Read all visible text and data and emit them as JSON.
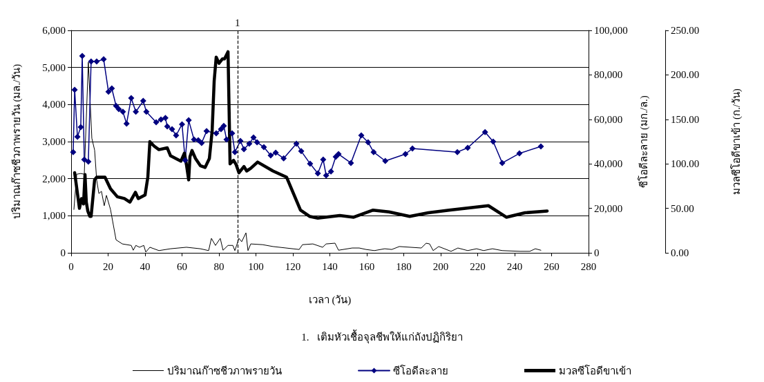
{
  "chart_data": {
    "type": "line",
    "xlabel": "เวลา (วัน)",
    "ylabel": "ปริมาณก๊าซชีวภาพรายวัน (มล./วัน)",
    "y2label": "ซีโอดีละลาย (มก./ล.)",
    "y3label": "มวลซีโอดีขาเข้า (ก./วัน)",
    "xlim": [
      0,
      280
    ],
    "xticks": [
      0,
      20,
      40,
      60,
      80,
      100,
      120,
      140,
      160,
      180,
      200,
      220,
      240,
      260,
      280
    ],
    "ylim": [
      0,
      6000
    ],
    "yticks": [
      {
        "value": 0,
        "label": "0"
      },
      {
        "value": 1000,
        "label": "1,000"
      },
      {
        "value": 2000,
        "label": "2,000"
      },
      {
        "value": 3000,
        "label": "3,000"
      },
      {
        "value": 4000,
        "label": "4,000"
      },
      {
        "value": 5000,
        "label": "5,000"
      },
      {
        "value": 6000,
        "label": "6,000"
      }
    ],
    "y2lim": [
      0,
      100000
    ],
    "y2ticks": [
      {
        "value": 0,
        "label": "0"
      },
      {
        "value": 20000,
        "label": "20,000"
      },
      {
        "value": 40000,
        "label": "40,000"
      },
      {
        "value": 60000,
        "label": "60,000"
      },
      {
        "value": 80000,
        "label": "80,000"
      },
      {
        "value": 100000,
        "label": "100,000"
      }
    ],
    "y3lim": [
      0,
      250
    ],
    "y3ticks": [
      {
        "value": 0,
        "label": "0.00"
      },
      {
        "value": 50,
        "label": "50.00"
      },
      {
        "value": 100,
        "label": "100.00"
      },
      {
        "value": 150,
        "label": "150.00"
      },
      {
        "value": 200,
        "label": "200.00"
      },
      {
        "value": 250,
        "label": "250.00"
      }
    ],
    "grid": "y",
    "legend": "bottom",
    "series": [
      {
        "name": "ปริมาณก๊าซชีวภาพรายวัน",
        "color": "#000000",
        "axis": "y",
        "marker": "none",
        "x": [
          1.5,
          3,
          5.2,
          7.1,
          9.3,
          11.2,
          12.7,
          13.8,
          15,
          16.4,
          17.9,
          19.1,
          21.3,
          24.3,
          27.7,
          32.5,
          33.6,
          35,
          37,
          39.3,
          40.4,
          42.6,
          47.5,
          53.8,
          62.4,
          69.9,
          74.4,
          75.9,
          78.1,
          80.7,
          82.2,
          84.9,
          87.5,
          88.6,
          90.8,
          92.3,
          94.6,
          95.7,
          97.2,
          103.6,
          109.2,
          123.4,
          125.2,
          130.8,
          136.1,
          138,
          142.8,
          144.7,
          152.1,
          155.9,
          159.6,
          164.1,
          169.7,
          173.5,
          177.6,
          189.5,
          192.1,
          194,
          195.9,
          198.9,
          205.6,
          209.3,
          214.6,
          219.4,
          223.2,
          228,
          233.3,
          243,
          248.2,
          251.2,
          254.2
        ],
        "values": [
          1170,
          2120,
          2140,
          2120,
          5140,
          3090,
          2770,
          1970,
          1600,
          1660,
          1270,
          1550,
          1170,
          350,
          240,
          200,
          70,
          200,
          150,
          200,
          20,
          150,
          60,
          110,
          150,
          110,
          60,
          390,
          200,
          390,
          70,
          200,
          200,
          60,
          390,
          300,
          540,
          60,
          240,
          220,
          170,
          90,
          220,
          240,
          150,
          240,
          260,
          70,
          130,
          130,
          90,
          60,
          110,
          90,
          170,
          130,
          260,
          240,
          60,
          170,
          40,
          130,
          60,
          110,
          60,
          110,
          60,
          40,
          40,
          110,
          70
        ]
      },
      {
        "name": "ซีโอดีละลาย",
        "color": "#000080",
        "axis": "y2",
        "marker": "diamond",
        "x": [
          1.1,
          1.9,
          3.4,
          5.2,
          6,
          7.1,
          9.3,
          10.8,
          13.8,
          17.6,
          20.2,
          22,
          24.3,
          25.8,
          28,
          30,
          32.5,
          35,
          39,
          40.7,
          46,
          48.6,
          51,
          52,
          54.6,
          56.8,
          60,
          61.7,
          63.6,
          66.5,
          68.8,
          70.6,
          73.3,
          78.5,
          81.1,
          82.6,
          84.1,
          87.1,
          88.6,
          91.6,
          93.5,
          96.4,
          98.7,
          100.6,
          104.3,
          108,
          110.7,
          115,
          121.9,
          124.5,
          129.3,
          133.5,
          136.4,
          138,
          140.6,
          143.2,
          144.7,
          151.4,
          157,
          160.7,
          163.7,
          170,
          180.9,
          184.7,
          209,
          214.6,
          224,
          228.4,
          233.3,
          242.6,
          254.2
        ],
        "values": [
          45300,
          73300,
          52200,
          56500,
          88500,
          41900,
          41000,
          86000,
          86000,
          87000,
          72400,
          73900,
          66100,
          64600,
          63400,
          58100,
          69600,
          63400,
          68300,
          63400,
          58700,
          59900,
          60600,
          56800,
          55600,
          52800,
          57800,
          41600,
          59600,
          50900,
          50600,
          49400,
          54700,
          53700,
          55600,
          57100,
          50900,
          53700,
          45300,
          50300,
          46600,
          49100,
          51900,
          49700,
          47500,
          43800,
          45000,
          42500,
          49100,
          45700,
          40100,
          35700,
          41900,
          34800,
          36600,
          43200,
          44400,
          40400,
          52800,
          49700,
          45300,
          41300,
          44400,
          46900,
          45300,
          47200,
          54300,
          50000,
          40400,
          44700,
          47800
        ]
      },
      {
        "name": "มวลซีโอดีขาเข้า",
        "color": "#000000",
        "axis": "y3",
        "marker": "none",
        "x": [
          1.9,
          4.5,
          5.6,
          6.7,
          7.5,
          8.2,
          9,
          10.1,
          10.8,
          12.7,
          13.8,
          18.3,
          21.3,
          25,
          28.8,
          31.8,
          34.8,
          36.3,
          40,
          41.5,
          42.6,
          44.9,
          47.5,
          52,
          53.8,
          59.4,
          61.3,
          62.4,
          63.6,
          64.3,
          65.4,
          67.3,
          69.9,
          72.5,
          74.8,
          76.3,
          77.4,
          78.5,
          80,
          81.9,
          83,
          84.9,
          85.6,
          86,
          87.9,
          89.3,
          90.8,
          93.5,
          95,
          97.2,
          100.9,
          109.2,
          116.6,
          124.1,
          129,
          133.5,
          145.4,
          152.9,
          163.4,
          172,
          183.2,
          193.3,
          204.5,
          225.8,
          235.5,
          245.6,
          257.6
        ],
        "values": [
          90,
          50,
          61,
          55,
          88,
          57,
          47,
          41,
          41,
          82,
          85,
          85,
          72,
          63,
          61,
          57,
          68,
          61,
          65,
          85,
          125,
          120,
          116,
          118,
          109,
          103,
          112,
          99,
          82,
          108,
          115,
          106,
          98,
          96,
          106,
          137,
          193,
          220,
          213,
          218,
          218,
          226,
          147,
          100,
          104,
          99,
          90,
          97,
          92,
          95,
          102,
          92,
          85,
          48,
          41,
          39,
          42,
          40,
          48,
          46,
          41,
          45,
          48,
          53,
          40,
          45,
          47
        ]
      }
    ],
    "ref_lines": [
      {
        "axis": "x",
        "value": 90,
        "line_style": "dashed",
        "color": "#000000"
      }
    ],
    "annotations": [
      {
        "text": "1",
        "x": 90,
        "y": 6000
      },
      "1.   เติมหัวเชื้อจุลชีพให้แก่ถังปฏิกิริยา"
    ]
  }
}
